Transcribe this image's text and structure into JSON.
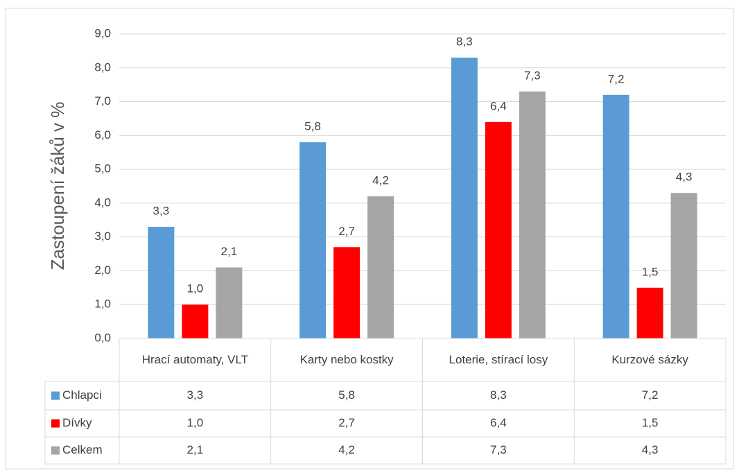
{
  "chart_data": {
    "type": "bar",
    "y_label": "Zastoupení žáků v %",
    "categories": [
      "Hrací automaty, VLT",
      "Karty nebo kostky",
      "Loterie, stírací losy",
      "Kurzové sázky"
    ],
    "series": [
      {
        "name": "Chlapci",
        "color": "#5b9bd5",
        "values": [
          3.3,
          5.8,
          8.3,
          7.2
        ],
        "value_labels": [
          "3,3",
          "5,8",
          "8,3",
          "7,2"
        ]
      },
      {
        "name": "Dívky",
        "color": "#ff0000",
        "values": [
          1.0,
          2.7,
          6.4,
          1.5
        ],
        "value_labels": [
          "1,0",
          "2,7",
          "6,4",
          "1,5"
        ]
      },
      {
        "name": "Celkem",
        "color": "#a5a5a5",
        "values": [
          2.1,
          4.2,
          7.3,
          4.3
        ],
        "value_labels": [
          "2,1",
          "4,2",
          "7,3",
          "4,3"
        ]
      }
    ],
    "ylim": [
      0,
      9
    ],
    "yticks": [
      {
        "value": 0,
        "label": "0,0"
      },
      {
        "value": 1,
        "label": "1,0"
      },
      {
        "value": 2,
        "label": "2,0"
      },
      {
        "value": 3,
        "label": "3,0"
      },
      {
        "value": 4,
        "label": "4,0"
      },
      {
        "value": 5,
        "label": "5,0"
      },
      {
        "value": 6,
        "label": "6,0"
      },
      {
        "value": 7,
        "label": "7,0"
      },
      {
        "value": 8,
        "label": "8,0"
      },
      {
        "value": 9,
        "label": "9,0"
      }
    ],
    "grid": true,
    "data_table": true
  }
}
